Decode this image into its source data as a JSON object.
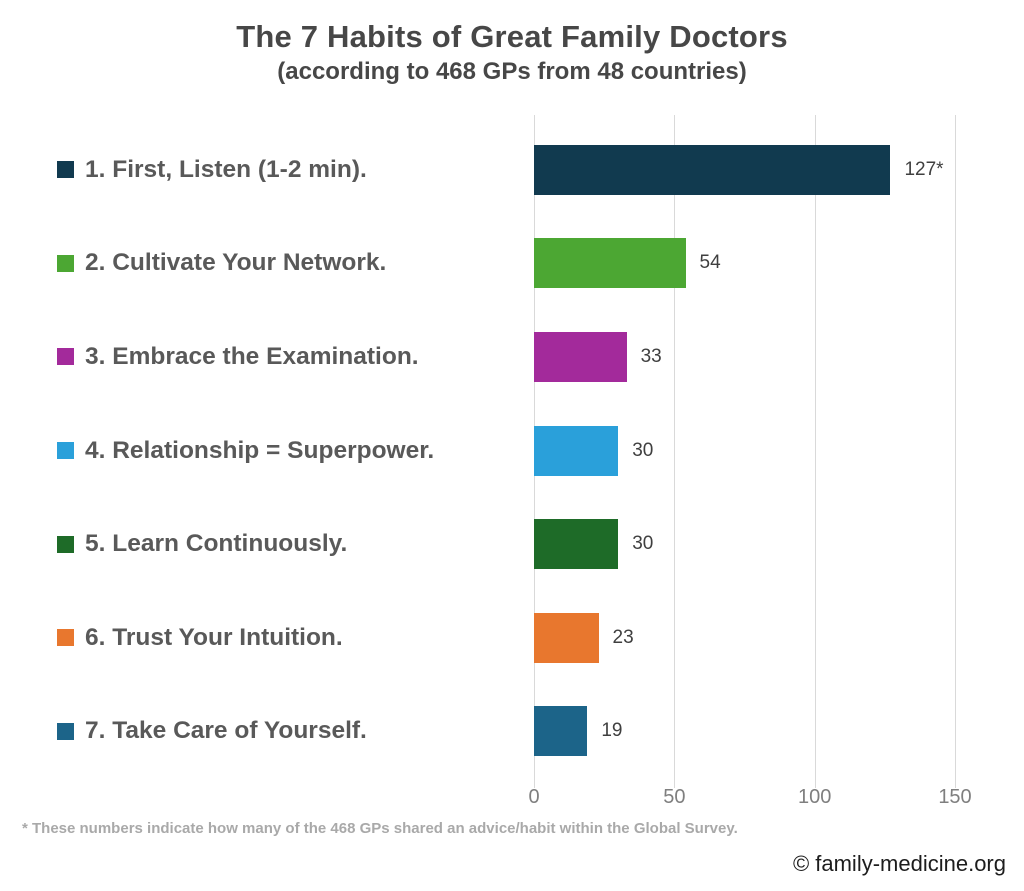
{
  "header": {
    "title": "The 7 Habits of Great Family Doctors",
    "subtitle": "(according to 468 GPs from 48 countries)"
  },
  "chart_data": {
    "type": "bar",
    "orientation": "horizontal",
    "title": "The 7 Habits of Great Family Doctors",
    "subtitle": "(according to 468 GPs from 48 countries)",
    "categories": [
      "1. First, Listen (1-2 min).",
      "2. Cultivate Your Network.",
      "3. Embrace the Examination.",
      "4. Relationship = Superpower.",
      "5. Learn Continuously.",
      "6. Trust Your Intuition.",
      "7. Take Care of Yourself."
    ],
    "values": [
      127,
      54,
      33,
      30,
      30,
      23,
      19
    ],
    "value_labels": [
      "127*",
      "54",
      "33",
      "30",
      "30",
      "23",
      "19"
    ],
    "bar_colors": [
      "#113A4F",
      "#4CA733",
      "#A32A9B",
      "#2AA0DA",
      "#1E6B28",
      "#E8772E",
      "#1C6489"
    ],
    "xlim": [
      0,
      150
    ],
    "x_ticks": [
      0,
      50,
      100,
      150
    ],
    "grid": "vertical",
    "gridline_color": "#d9d9d9",
    "legend_position": "left-of-labels"
  },
  "footer": {
    "footnote": "* These numbers indicate how many of the 468 GPs shared an advice/habit within the Global Survey.",
    "attribution": "© family-medicine.org"
  }
}
